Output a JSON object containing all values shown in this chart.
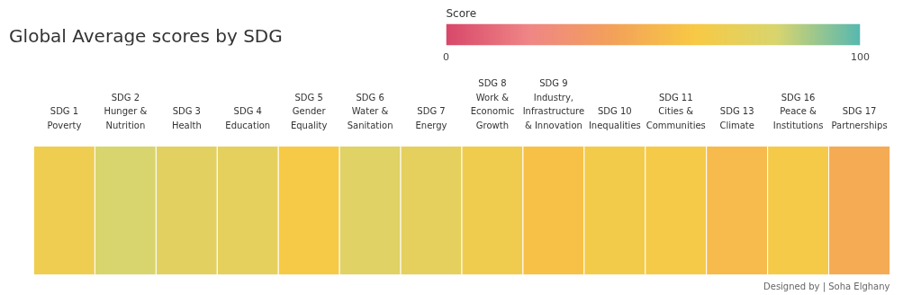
{
  "chart_data": {
    "type": "heatmap",
    "title": "Global Average scores by SDG",
    "categories": [
      "SDG 1\nPoverty",
      "SDG 2\nHunger &\nNutrition",
      "SDG 3\nHealth",
      "SDG 4\nEducation",
      "SDG 5\nGender\nEquality",
      "SDG 6\nWater &\nSanitation",
      "SDG 7\nEnergy",
      "SDG 8\nWork &\nEconomic\nGrowth",
      "SDG 9\nIndustry,\nInfrastructure\n& Innovation",
      "SDG 10\nInequalities",
      "SDG 11\nCities &\nCommunities",
      "SDG 13\nClimate",
      "SDG 16\nPeace &\nInstitutions",
      "SDG 17\nPartnerships"
    ],
    "y_categories": [
      null
    ],
    "cells": [
      [
        66,
        80,
        74,
        72,
        61,
        75,
        72,
        65,
        56,
        63,
        62,
        53,
        62,
        45
      ]
    ],
    "clim": [
      0,
      100
    ],
    "cticks": [
      0,
      100
    ],
    "clabel": "Score",
    "colors": [
      "#d8486a",
      "#ef8686",
      "#f3a15a",
      "#f8c944",
      "#d8d56e",
      "#58b8b0"
    ],
    "annotations": [
      "Designed by | Soha Elghany"
    ]
  }
}
